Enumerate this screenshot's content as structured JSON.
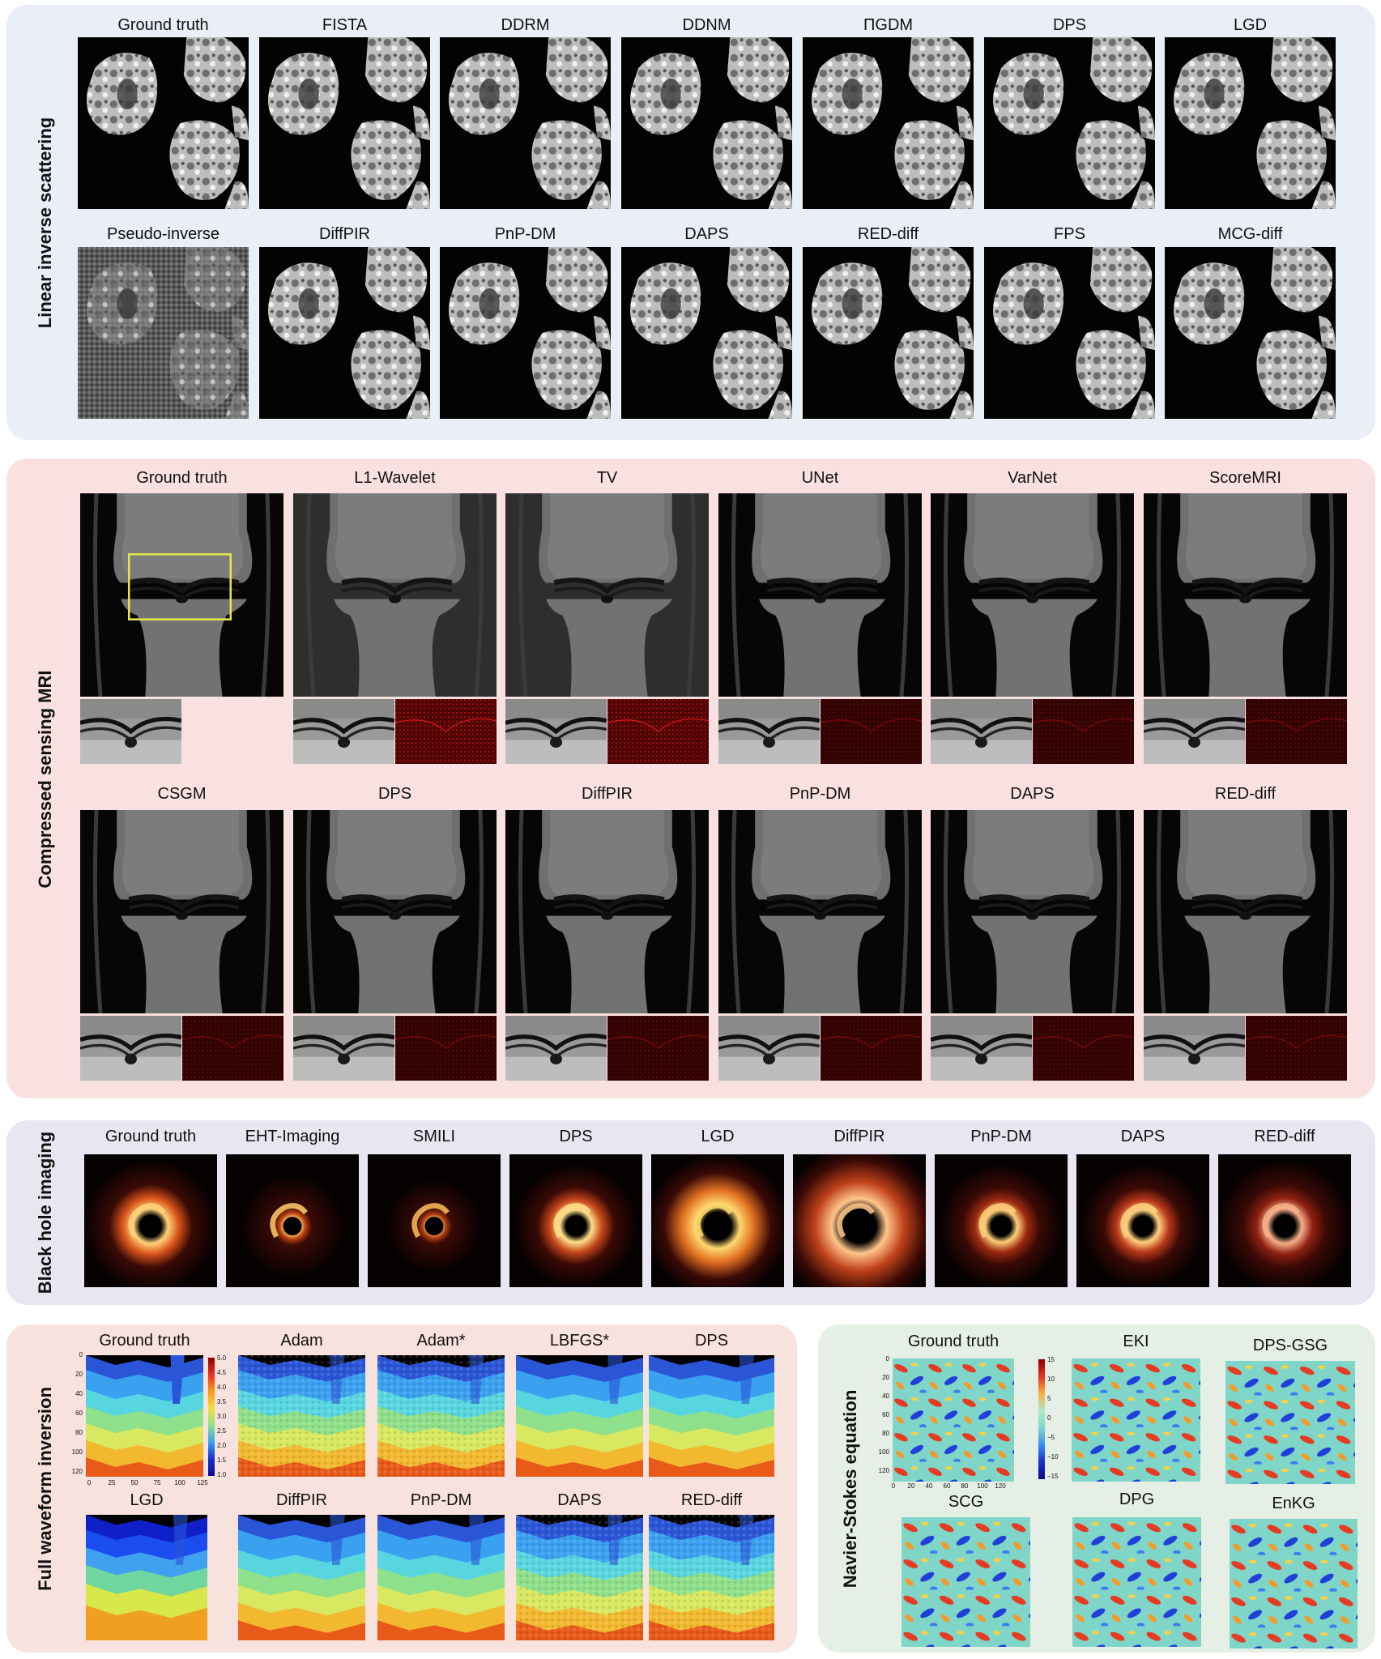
{
  "sections": {
    "scattering": {
      "label": "Linear inverse scattering",
      "row1": [
        "Ground truth",
        "FISTA",
        "DDRM",
        "DDNM",
        "ΠGDM",
        "DPS",
        "LGD"
      ],
      "row2": [
        "Pseudo-inverse",
        "DiffPIR",
        "PnP-DM",
        "DAPS",
        "RED-diff",
        "FPS",
        "MCG-diff"
      ]
    },
    "mri": {
      "label": "Compressed sensing MRI",
      "row1": [
        "Ground truth",
        "L1-Wavelet",
        "TV",
        "UNet",
        "VarNet",
        "ScoreMRI"
      ],
      "row2": [
        "CSGM",
        "DPS",
        "DiffPIR",
        "PnP-DM",
        "DAPS",
        "RED-diff"
      ]
    },
    "blackhole": {
      "label": "Black hole imaging",
      "row": [
        "Ground truth",
        "EHT-Imaging",
        "SMILI",
        "DPS",
        "LGD",
        "DiffPIR",
        "PnP-DM",
        "DAPS",
        "RED-diff"
      ]
    },
    "fwi": {
      "label": "Full waveform inversion",
      "row1": [
        "Ground truth",
        "Adam",
        "Adam*",
        "LBFGS*",
        "DPS"
      ],
      "row2": [
        "LGD",
        "DiffPIR",
        "PnP-DM",
        "DAPS",
        "RED-diff"
      ],
      "yticks": [
        "0",
        "20",
        "40",
        "60",
        "80",
        "100",
        "120"
      ],
      "xticks": [
        "0",
        "25",
        "50",
        "75",
        "100",
        "125"
      ],
      "cbar": [
        "5.0",
        "4.5",
        "4.0",
        "3.5",
        "3.0",
        "2.5",
        "2.0",
        "1.5",
        "1.0"
      ]
    },
    "ns": {
      "label": "Navier-Stokes equation",
      "row1": [
        "Ground truth",
        "EKI",
        "DPS-GSG"
      ],
      "row2": [
        "SCG",
        "DPG",
        "EnKG"
      ],
      "yticks": [
        "0",
        "20",
        "40",
        "60",
        "80",
        "100",
        "120"
      ],
      "xticks": [
        "0",
        "20",
        "40",
        "60",
        "80",
        "100",
        "120"
      ],
      "cbar": [
        "15",
        "10",
        "5",
        "0",
        "−5",
        "−10",
        "−15"
      ]
    }
  },
  "colors": {
    "scattering_bg": "#e9eef7",
    "mri_bg": "#f8e1e0",
    "blackhole_bg": "#e8e6f1",
    "fwi_bg": "#f7e2de",
    "ns_bg": "#e6efe6"
  }
}
